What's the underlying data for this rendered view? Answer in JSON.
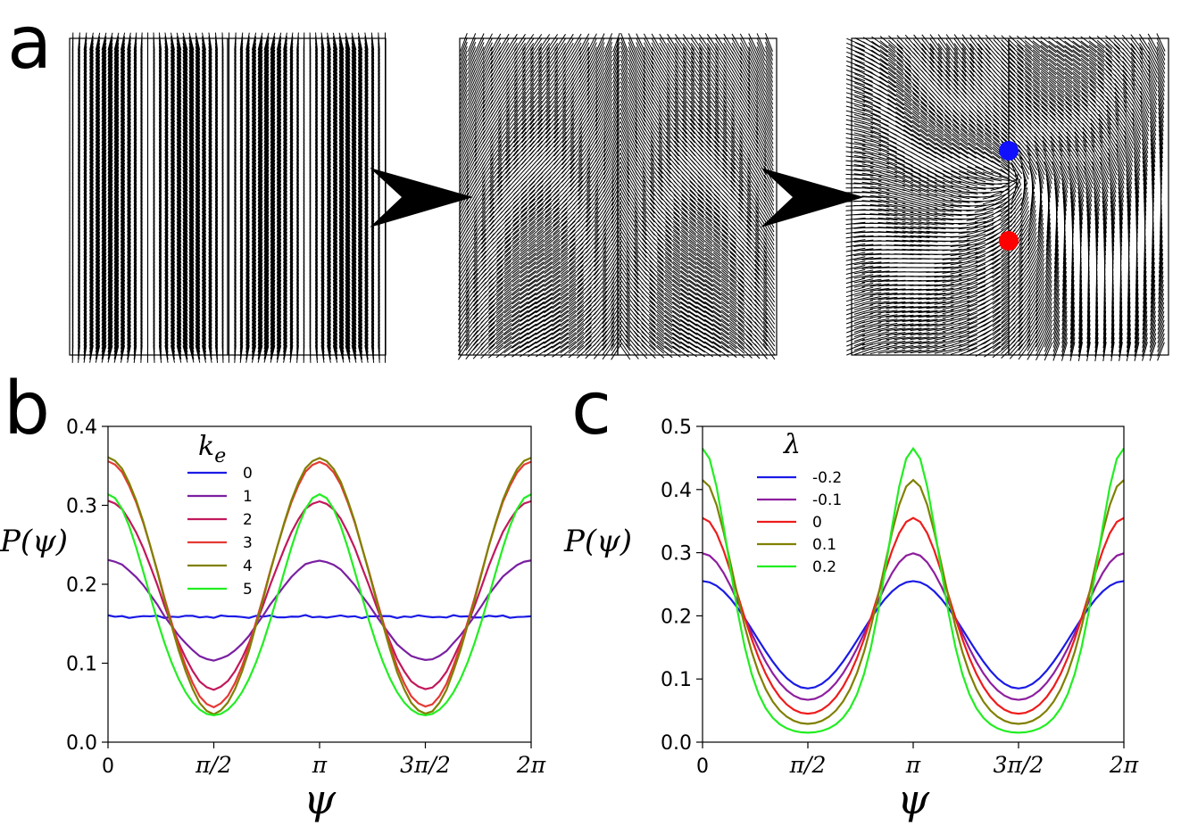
{
  "panels": {
    "a_label": "a",
    "b_label": "b",
    "c_label": "c"
  },
  "director_field": {
    "frames": [
      "uniform stripes",
      "bend instability",
      "defect pair"
    ],
    "defect_colors": {
      "plus": "#1010ff",
      "minus": "#ff0000"
    }
  },
  "chart_data": [
    {
      "id": "b",
      "type": "line",
      "xlabel": "ψ",
      "ylabel": "P(ψ)",
      "xlim": [
        0,
        6.2832
      ],
      "ylim": [
        0,
        0.4
      ],
      "xticks": [
        {
          "value": 0,
          "label": "0"
        },
        {
          "value": 1.5708,
          "label": "π/2"
        },
        {
          "value": 3.1416,
          "label": "π"
        },
        {
          "value": 4.7124,
          "label": "3π/2"
        },
        {
          "value": 6.2832,
          "label": "2π"
        }
      ],
      "yticks": [
        {
          "value": 0.0,
          "label": "0.0"
        },
        {
          "value": 0.1,
          "label": "0.1"
        },
        {
          "value": 0.2,
          "label": "0.2"
        },
        {
          "value": 0.3,
          "label": "0.3"
        },
        {
          "value": 0.4,
          "label": "0.4"
        }
      ],
      "legend_title": "k_e",
      "legend_title_main": "k",
      "legend_title_sub": "e",
      "legend_position": "upper-left",
      "series": [
        {
          "name": "0",
          "color": "#1a1ae6",
          "mean": 0.159,
          "amp": 0.0,
          "noise": 0.002
        },
        {
          "name": "1",
          "color": "#7a1fa2",
          "mean": 0.167,
          "amp": 0.063,
          "noise": 0.001
        },
        {
          "name": "2",
          "color": "#c2185b",
          "mean": 0.186,
          "amp": 0.119,
          "noise": 0.001
        },
        {
          "name": "3",
          "color": "#e53935",
          "mean": 0.2,
          "amp": 0.155,
          "noise": 0.001
        },
        {
          "name": "4",
          "color": "#808000",
          "mean": 0.198,
          "amp": 0.162,
          "noise": 0.001
        },
        {
          "name": "5",
          "color": "#22ee22",
          "mean": 0.174,
          "amp": 0.14,
          "noise": 0.0,
          "sharp": 0.25
        }
      ]
    },
    {
      "id": "c",
      "type": "line",
      "xlabel": "ψ",
      "ylabel": "P(ψ)",
      "xlim": [
        0,
        6.2832
      ],
      "ylim": [
        0,
        0.5
      ],
      "xticks": [
        {
          "value": 0,
          "label": "0"
        },
        {
          "value": 1.5708,
          "label": "π/2"
        },
        {
          "value": 3.1416,
          "label": "π"
        },
        {
          "value": 4.7124,
          "label": "3π/2"
        },
        {
          "value": 6.2832,
          "label": "2π"
        }
      ],
      "yticks": [
        {
          "value": 0.0,
          "label": "0.0"
        },
        {
          "value": 0.1,
          "label": "0.1"
        },
        {
          "value": 0.2,
          "label": "0.2"
        },
        {
          "value": 0.3,
          "label": "0.3"
        },
        {
          "value": 0.4,
          "label": "0.4"
        },
        {
          "value": 0.5,
          "label": "0.5"
        }
      ],
      "legend_title": "λ",
      "legend_position": "upper-left",
      "series": [
        {
          "name": "-0.2",
          "color": "#1a1ae6",
          "mean": 0.17,
          "amp": 0.085,
          "sharp": 0.0
        },
        {
          "name": "-0.1",
          "color": "#8e1f9e",
          "mean": 0.183,
          "amp": 0.116,
          "sharp": 0.2
        },
        {
          "name": "0",
          "color": "#ee1c1c",
          "mean": 0.2,
          "amp": 0.155,
          "sharp": 0.35
        },
        {
          "name": "0.1",
          "color": "#808000",
          "mean": 0.222,
          "amp": 0.193,
          "sharp": 0.55
        },
        {
          "name": "0.2",
          "color": "#22ee22",
          "mean": 0.24,
          "amp": 0.225,
          "sharp": 0.8
        }
      ]
    }
  ]
}
